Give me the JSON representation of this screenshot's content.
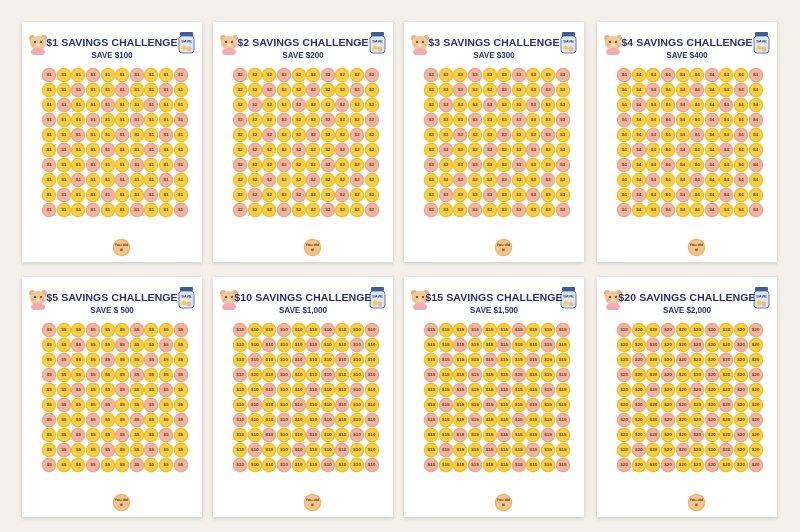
{
  "colors": {
    "background": "#f4efe9",
    "title": "#2a2f6e",
    "coin_yellow": "#f7cf47",
    "coin_peach": "#f3b39d"
  },
  "icons": [
    "bear-icon",
    "savings-jar-icon"
  ],
  "jar_label": "SAVE",
  "done_label": "You did it!",
  "cards": [
    {
      "title": "$1 SAVINGS CHALLENGE",
      "subtitle": "SAVE $100",
      "coin": "$1"
    },
    {
      "title": "$2 SAVINGS CHALLENGE",
      "subtitle": "SAVE $200",
      "coin": "$2"
    },
    {
      "title": "$3 SAVINGS CHALLENGE",
      "subtitle": "SAVE $300",
      "coin": "$3"
    },
    {
      "title": "$4 SAVINGS CHALLENGE",
      "subtitle": "SAVE $400",
      "coin": "$4"
    },
    {
      "title": "$5 SAVINGS CHALLENGE",
      "subtitle": "SAVE $ 500",
      "coin": "$5"
    },
    {
      "title": "$10 SAVINGS CHALLENGE",
      "subtitle": "SAVE $1,000",
      "coin": "$10"
    },
    {
      "title": "$15 SAVINGS CHALLENGE",
      "subtitle": "SAVE $1,500",
      "coin": "$15"
    },
    {
      "title": "$20 SAVINGS CHALLENGE",
      "subtitle": "SAVE $2,000",
      "coin": "$20"
    }
  ]
}
